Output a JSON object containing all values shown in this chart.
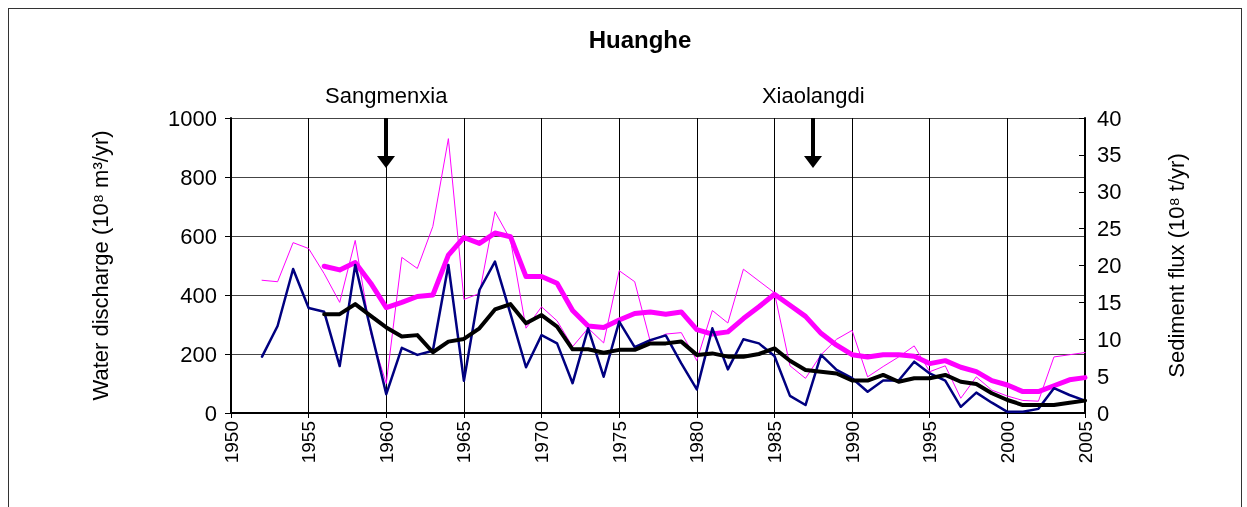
{
  "chart_data": {
    "type": "line",
    "title": "Huanghe",
    "xlabel": null,
    "ylabel": "Water discharge (10⁸ m³/yr)",
    "y2label": "Sediment flux (10⁸ t/yr)",
    "x": [
      1952,
      1953,
      1954,
      1955,
      1956,
      1957,
      1958,
      1959,
      1960,
      1961,
      1962,
      1963,
      1964,
      1965,
      1966,
      1967,
      1968,
      1969,
      1970,
      1971,
      1972,
      1973,
      1974,
      1975,
      1976,
      1977,
      1978,
      1979,
      1980,
      1981,
      1982,
      1983,
      1984,
      1985,
      1986,
      1987,
      1988,
      1989,
      1990,
      1991,
      1992,
      1993,
      1994,
      1995,
      1996,
      1997,
      1998,
      1999,
      2000,
      2001,
      2002,
      2003,
      2004,
      2005
    ],
    "series": [
      {
        "color": "#000080",
        "values": [
          191,
          295,
          488,
          356,
          343,
          159,
          502,
          282,
          64,
          221,
          197,
          211,
          502,
          109,
          417,
          513,
          336,
          155,
          264,
          236,
          101,
          287,
          123,
          310,
          223,
          247,
          263,
          168,
          80,
          287,
          148,
          250,
          236,
          193,
          58,
          27,
          197,
          146,
          118,
          72,
          110,
          110,
          174,
          134,
          110,
          21,
          69,
          35,
          4,
          4,
          14,
          84,
          61,
          42
        ]
      },
      {
        "color": "#000000",
        "values": [
          null,
          null,
          null,
          null,
          335,
          335,
          369,
          329,
          290,
          259,
          264,
          206,
          242,
          251,
          287,
          351,
          369,
          304,
          332,
          293,
          216,
          216,
          204,
          214,
          214,
          236,
          236,
          242,
          197,
          202,
          191,
          191,
          200,
          219,
          177,
          146,
          140,
          134,
          110,
          110,
          129,
          106,
          118,
          118,
          129,
          106,
          98,
          67,
          44,
          27,
          27,
          27,
          35,
          42
        ]
      },
      {
        "color": "#ff00ff",
        "axis": "y2",
        "values": [
          18.0,
          17.8,
          23.1,
          22.3,
          18.9,
          15.0,
          23.4,
          10.8,
          4.0,
          21.1,
          19.6,
          25.3,
          37.2,
          15.4,
          16.2,
          27.3,
          23.5,
          11.5,
          14.4,
          12.5,
          9.0,
          11.5,
          9.5,
          19.3,
          17.8,
          9.7,
          10.7,
          10.9,
          7.1,
          13.9,
          12.2,
          19.5,
          17.9,
          16.3,
          6.4,
          4.7,
          7.9,
          10.0,
          11.2,
          4.9,
          6.3,
          7.6,
          9.1,
          5.6,
          6.4,
          2.0,
          4.9,
          3.1,
          2.3,
          1.7,
          1.6,
          7.6,
          7.9,
          8.2
        ]
      },
      {
        "color": "#ff00ff",
        "axis": "y2",
        "values": [
          null,
          null,
          null,
          null,
          19.9,
          19.4,
          20.4,
          17.6,
          14.3,
          15.0,
          15.8,
          16.0,
          21.4,
          23.8,
          23.0,
          24.4,
          23.9,
          18.5,
          18.5,
          17.6,
          13.9,
          11.8,
          11.6,
          12.6,
          13.5,
          13.7,
          13.4,
          13.7,
          11.3,
          10.7,
          11.0,
          12.8,
          14.4,
          16.1,
          14.6,
          13.1,
          10.8,
          9.2,
          7.9,
          7.6,
          7.9,
          7.9,
          7.7,
          6.7,
          7.1,
          6.2,
          5.6,
          4.4,
          3.8,
          2.9,
          2.9,
          3.7,
          4.5,
          4.8
        ]
      }
    ],
    "xlim": [
      1950,
      2005
    ],
    "xticks": [
      1950,
      1955,
      1960,
      1965,
      1970,
      1975,
      1980,
      1985,
      1990,
      1995,
      2000,
      2005
    ],
    "ylim": [
      0,
      1000
    ],
    "yticks": [
      0,
      200,
      400,
      600,
      800,
      1000
    ],
    "y2lim": [
      0,
      40
    ],
    "y2ticks": [
      0,
      5,
      10,
      15,
      20,
      25,
      30,
      35,
      40
    ],
    "grid": true,
    "marker": "none",
    "line_style": "solid",
    "annotations": [
      "Sangmenxia",
      "Xiaolangdi"
    ]
  }
}
